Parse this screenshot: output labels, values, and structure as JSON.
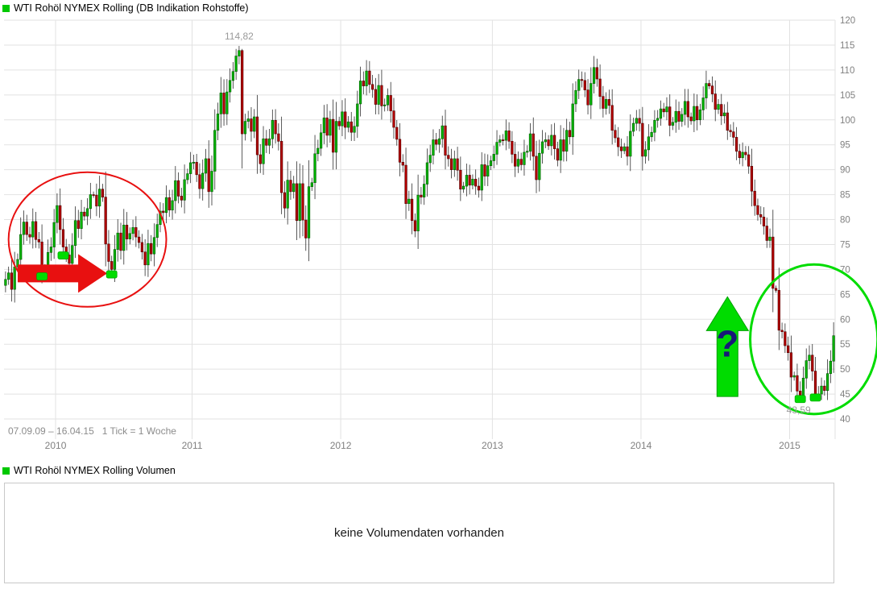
{
  "price_chart": {
    "title": "WTI Rohöl NYMEX Rolling (DB Indikation Rohstoffe)",
    "period_info": "07.09.09 – 16.04.15   1 Tick = 1 Woche",
    "legend_color": "#00c800"
  },
  "volume_chart": {
    "title": "WTI Rohöl NYMEX Rolling Volumen",
    "message": "keine Volumendaten vorhanden",
    "legend_color": "#00c800"
  },
  "chart_data": {
    "type": "candlestick",
    "title": "WTI Rohöl NYMEX Rolling (DB Indikation Rohstoffe)",
    "date_range": "07.09.09 – 16.04.15",
    "tick_note": "1 Tick = 1 Woche",
    "x_unit": "week",
    "grid": true,
    "legend_position": "top-left",
    "ylim": [
      40,
      120
    ],
    "ytick_step": 5,
    "ytick_labels": [
      "120",
      "115",
      "110",
      "105",
      "100",
      "95",
      "90",
      "85",
      "80",
      "75",
      "70",
      "65",
      "60",
      "55",
      "50",
      "45",
      "40"
    ],
    "xtick_labels": [
      "2010",
      "2011",
      "2012",
      "2013",
      "2014",
      "2015"
    ],
    "colors": {
      "up": "#00b400",
      "up_border": "#005a00",
      "down": "#b40000",
      "down_border": "#500000",
      "wick": "#303030",
      "grid": "#e2e2e2",
      "axis_text": "#808080",
      "extreme_label": "#9a9a9a"
    },
    "years": [
      {
        "year": "2009",
        "closes": [
          68.0,
          69.3,
          66.0,
          70.5,
          72.0,
          77.0,
          79.5,
          77.0,
          76.5,
          79.6,
          76.0,
          75.5,
          70.3,
          69.9,
          73.4,
          74.5,
          79.4
        ]
      },
      {
        "year": "2010",
        "closes": [
          82.8,
          78.0,
          74.5,
          72.9,
          71.2,
          74.8,
          79.8,
          78.2,
          81.5,
          80.7,
          82.2,
          85.0,
          84.9,
          82.7,
          86.1,
          84.5,
          75.1,
          71.6,
          70.0,
          74.0,
          77.3,
          73.8,
          78.9,
          76.1,
          77.2,
          78.4,
          76.5,
          75.4,
          73.5,
          70.9,
          75.2,
          73.1,
          76.4,
          79.0,
          81.7,
          81.4,
          84.4,
          81.9,
          83.8,
          87.8,
          84.7,
          83.9,
          88.0,
          89.2,
          91.4
        ]
      },
      {
        "year": "2011",
        "closes": [
          91.5,
          89.0,
          86.2,
          89.3,
          92.2,
          85.6,
          89.7,
          97.9,
          101.2,
          105.4,
          101.2,
          105.6,
          107.9,
          109.7,
          112.8,
          113.9,
          97.2,
          99.7,
          100.2,
          97.7,
          100.6,
          93.0,
          91.2,
          96.2,
          94.9,
          96.2,
          99.9,
          97.2,
          95.7,
          85.4,
          82.3,
          87.9,
          85.6,
          87.2,
          79.8,
          87.2,
          79.9,
          76.3,
          86.6,
          87.4,
          93.2,
          94.3,
          97.4,
          100.4,
          96.9,
          100.1,
          93.5,
          99.7,
          98.8
        ]
      },
      {
        "year": "2012",
        "closes": [
          101.6,
          98.5,
          99.6,
          97.5,
          98.7,
          103.2,
          107.8,
          106.8,
          109.8,
          107.1,
          106.1,
          103.1,
          106.9,
          102.8,
          103.0,
          104.9,
          101.8,
          98.5,
          96.1,
          91.5,
          90.9,
          83.2,
          84.1,
          79.8,
          77.7,
          84.9,
          84.5,
          87.1,
          91.4,
          92.9,
          96.0,
          95.1,
          96.2,
          98.8,
          92.9,
          92.2,
          90.0,
          92.2,
          89.9,
          86.1,
          86.7,
          88.9,
          86.9,
          88.1,
          86.7,
          85.9,
          91.0,
          88.7,
          90.8,
          91.8
        ]
      },
      {
        "year": "2013",
        "closes": [
          93.1,
          95.5,
          96.0,
          95.9,
          97.8,
          95.7,
          93.1,
          90.7,
          92.1,
          91.0,
          93.5,
          93.7,
          97.2,
          92.7,
          88.0,
          93.3,
          95.6,
          96.0,
          94.8,
          96.9,
          94.2,
          91.9,
          96.0,
          93.7,
          97.9,
          96.6,
          103.2,
          105.9,
          108.1,
          107.9,
          106.0,
          103.0,
          107.3,
          110.5,
          108.2,
          104.7,
          102.3,
          104.1,
          102.9,
          97.9,
          96.4,
          94.6,
          93.8,
          94.6,
          92.7,
          97.7,
          99.3,
          100.3,
          99.3
        ]
      },
      {
        "year": "2014",
        "closes": [
          92.7,
          94.0,
          96.6,
          97.5,
          99.9,
          100.3,
          102.2,
          101.6,
          102.6,
          98.9,
          99.5,
          101.7,
          99.7,
          101.1,
          103.7,
          100.6,
          99.8,
          102.7,
          100.0,
          102.0,
          104.4,
          107.3,
          106.8,
          105.2,
          102.1,
          103.1,
          100.8,
          101.4,
          97.9,
          97.6,
          96.5,
          93.7,
          92.4,
          93.5,
          93.0,
          90.7,
          85.7,
          82.8,
          81.0,
          80.5,
          78.7,
          75.8,
          76.5,
          66.2,
          65.8,
          57.8,
          57.5,
          54.7,
          53.3
        ]
      },
      {
        "year": "2015",
        "closes": [
          48.4,
          48.7,
          45.6,
          44.5,
          48.2,
          51.7,
          52.8,
          49.6,
          44.8,
          45.0,
          46.6,
          45.7,
          49.1,
          51.6,
          56.7
        ]
      }
    ],
    "high_point": {
      "label": "114,82",
      "value": 114.82
    },
    "low_point": {
      "label": "43,59",
      "value": 43.59
    },
    "annotations": {
      "red_circle": {
        "center_index": 27,
        "center_price": 76,
        "rx_weeks": 26,
        "ry_price": 13.5,
        "color": "#e81010"
      },
      "red_arrow": {
        "from_index": 4,
        "to_index": 33.5,
        "price": 69.2,
        "color": "#e81010"
      },
      "green_circle": {
        "center_index": 266.5,
        "center_price": 56,
        "rx_weeks": 21,
        "ry_price": 15,
        "color": "#00dc00"
      },
      "green_up_arrow": {
        "center_index": 238,
        "price_top": 64.5,
        "price_bottom": 44.5,
        "color": "#00dc00",
        "question_mark": "?",
        "question_color": "#181878"
      },
      "buy_markers": {
        "color": "#00dc00",
        "points": [
          {
            "index": 12,
            "price": 68.6
          },
          {
            "index": 19,
            "price": 72.8
          },
          {
            "index": 35,
            "price": 69.0
          },
          {
            "index": 262,
            "price": 44.0
          },
          {
            "index": 267,
            "price": 44.3
          }
        ]
      }
    }
  }
}
